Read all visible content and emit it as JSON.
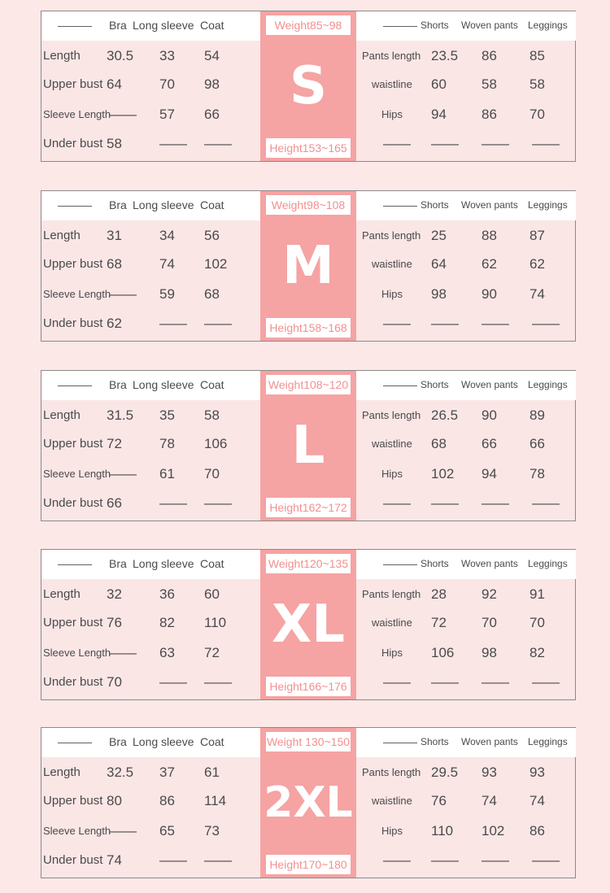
{
  "headers": {
    "left_blank": "———",
    "bra": "Bra",
    "long_sleeve": "Long sleeve",
    "coat": "Coat",
    "right_blank": "———",
    "shorts": "Shorts",
    "woven_pants": "Woven pants",
    "leggings": "Leggings"
  },
  "row_labels": {
    "length": "Length",
    "upper_bust": "Upper bust",
    "sleeve_length": "Sleeve Length",
    "under_bust": "Under bust",
    "pants_length": "Pants length",
    "waistline": "waistline",
    "hips": "Hips"
  },
  "dash": "——",
  "sizes": [
    {
      "size": "S",
      "weight": "Weight85~98",
      "height": "Height153~165",
      "length": [
        "30.5",
        "33",
        "54"
      ],
      "upper_bust": [
        "64",
        "70",
        "98"
      ],
      "sleeve_length": [
        "——",
        "57",
        "66"
      ],
      "under_bust": [
        "58",
        "——",
        "——"
      ],
      "pants_length": [
        "23.5",
        "86",
        "85"
      ],
      "waistline": [
        "60",
        "58",
        "58"
      ],
      "hips": [
        "94",
        "86",
        "70"
      ],
      "last": [
        "——",
        "——",
        "——",
        "——"
      ]
    },
    {
      "size": "M",
      "weight": "Weight98~108",
      "height": "Height158~168",
      "length": [
        "31",
        "34",
        "56"
      ],
      "upper_bust": [
        "68",
        "74",
        "102"
      ],
      "sleeve_length": [
        "——",
        "59",
        "68"
      ],
      "under_bust": [
        "62",
        "——",
        "——"
      ],
      "pants_length": [
        "25",
        "88",
        "87"
      ],
      "waistline": [
        "64",
        "62",
        "62"
      ],
      "hips": [
        "98",
        "90",
        "74"
      ],
      "last": [
        "——",
        "——",
        "——",
        "——"
      ]
    },
    {
      "size": "L",
      "weight": "Weight108~120",
      "height": "Height162~172",
      "length": [
        "31.5",
        "35",
        "58"
      ],
      "upper_bust": [
        "72",
        "78",
        "106"
      ],
      "sleeve_length": [
        "——",
        "61",
        "70"
      ],
      "under_bust": [
        "66",
        "——",
        "——"
      ],
      "pants_length": [
        "26.5",
        "90",
        "89"
      ],
      "waistline": [
        "68",
        "66",
        "66"
      ],
      "hips": [
        "102",
        "94",
        "78"
      ],
      "last": [
        "——",
        "——",
        "——",
        "——"
      ]
    },
    {
      "size": "XL",
      "weight": "Weight120~135",
      "height": "Height166~176",
      "length": [
        "32",
        "36",
        "60"
      ],
      "upper_bust": [
        "76",
        "82",
        "110"
      ],
      "sleeve_length": [
        "——",
        "63",
        "72"
      ],
      "under_bust": [
        "70",
        "——",
        "——"
      ],
      "pants_length": [
        "28",
        "92",
        "91"
      ],
      "waistline": [
        "72",
        "70",
        "70"
      ],
      "hips": [
        "106",
        "98",
        "82"
      ],
      "last": [
        "——",
        "——",
        "——",
        "——"
      ]
    },
    {
      "size": "2XL",
      "weight": "Weight 130~150",
      "height": "Height170~180",
      "length": [
        "32.5",
        "37",
        "61"
      ],
      "upper_bust": [
        "80",
        "86",
        "114"
      ],
      "sleeve_length": [
        "——",
        "65",
        "73"
      ],
      "under_bust": [
        "74",
        "——",
        "——"
      ],
      "pants_length": [
        "29.5",
        "93",
        "93"
      ],
      "waistline": [
        "76",
        "74",
        "74"
      ],
      "hips": [
        "110",
        "102",
        "86"
      ],
      "last": [
        "——",
        "——",
        "——",
        "——"
      ]
    }
  ],
  "colors": {
    "background": "#fde8e8",
    "accent": "#f5a3a3",
    "accent_text": "#f38f8f"
  }
}
